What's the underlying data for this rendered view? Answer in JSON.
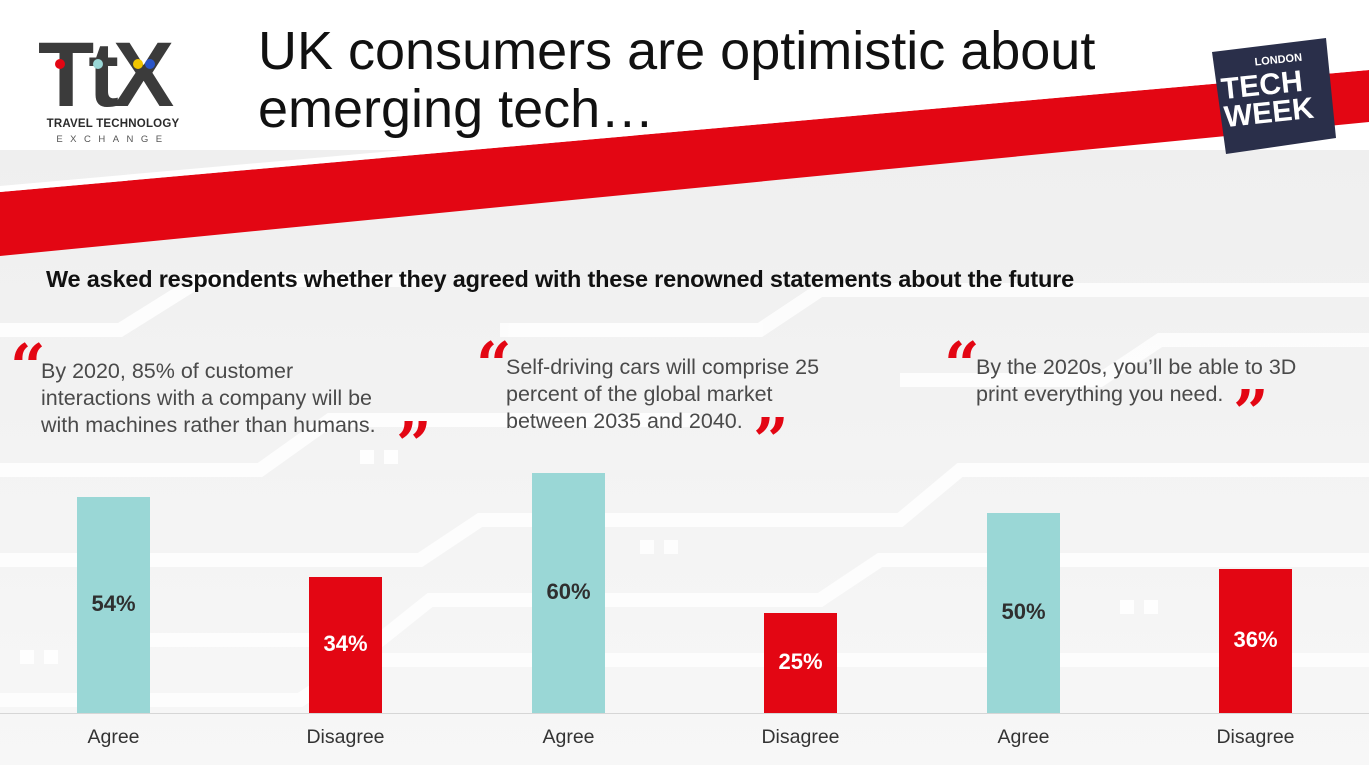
{
  "header": {
    "title_line1": "UK consumers are optimistic about",
    "title_line2": "emerging tech…",
    "logo_text": "TtX",
    "logo_line1": "TRAVEL TECHNOLOGY",
    "logo_line2": "EXCHANGE",
    "badge_line1": "LONDON",
    "badge_line2": "TECH",
    "badge_line3": "WEEK"
  },
  "subtitle": "We asked respondents whether they agreed with these renowned statements about the future",
  "statements": [
    {
      "lines": [
        "By 2020, 85% of customer",
        "interactions with a company will be",
        "with machines rather than humans."
      ]
    },
    {
      "lines": [
        "Self-driving cars will comprise 25",
        "percent of the global market",
        "between 2035 and 2040."
      ]
    },
    {
      "lines": [
        "By the 2020s, you’ll be able to 3D",
        "print everything you need."
      ]
    }
  ],
  "colors": {
    "agree": "#9ad7d6",
    "disagree": "#e30613",
    "accent_red": "#e30613",
    "badge_navy": "#2a2f4a"
  },
  "chart_data": {
    "type": "bar",
    "title": "We asked respondents whether they agreed with these renowned statements about the future",
    "groups": [
      {
        "categories": [
          "Agree",
          "Disagree"
        ],
        "values": [
          54,
          34
        ],
        "labels": [
          "54%",
          "34%"
        ]
      },
      {
        "categories": [
          "Agree",
          "Disagree"
        ],
        "values": [
          60,
          25
        ],
        "labels": [
          "60%",
          "25%"
        ]
      },
      {
        "categories": [
          "Agree",
          "Disagree"
        ],
        "values": [
          50,
          36
        ],
        "labels": [
          "50%",
          "36%"
        ]
      }
    ]
  }
}
